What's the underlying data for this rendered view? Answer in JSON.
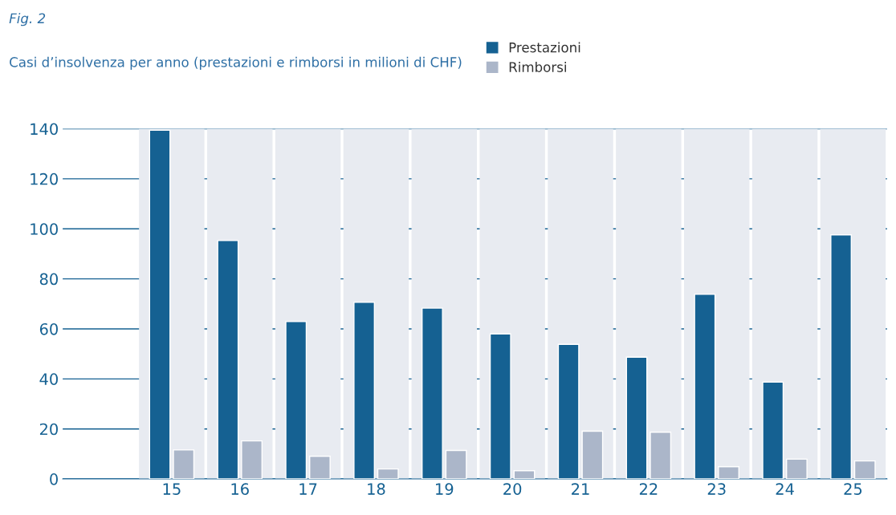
{
  "chart_data": {
    "type": "bar",
    "title": "Fig. 2",
    "subtitle": "Casi d’insolvenza per anno (prestazioni e rimborsi in milioni di CHF)",
    "categories": [
      "15",
      "16",
      "17",
      "18",
      "19",
      "20",
      "21",
      "22",
      "23",
      "24",
      "25"
    ],
    "series": [
      {
        "name": "Prestazioni",
        "color": "#156192",
        "values": [
          139.4,
          95.3,
          62.9,
          70.6,
          68.3,
          58.0,
          53.8,
          48.7,
          73.8,
          38.7,
          97.6
        ]
      },
      {
        "name": "Rimborsi",
        "color": "#abb6c9",
        "values": [
          11.6,
          15.2,
          9.1,
          4.0,
          11.4,
          3.3,
          19.1,
          18.7,
          4.9,
          7.9,
          7.2
        ]
      }
    ],
    "ylim": [
      0,
      140
    ],
    "yticks": [
      0,
      20,
      40,
      60,
      80,
      100,
      120,
      140
    ],
    "grid": "y",
    "legend": "top right"
  }
}
